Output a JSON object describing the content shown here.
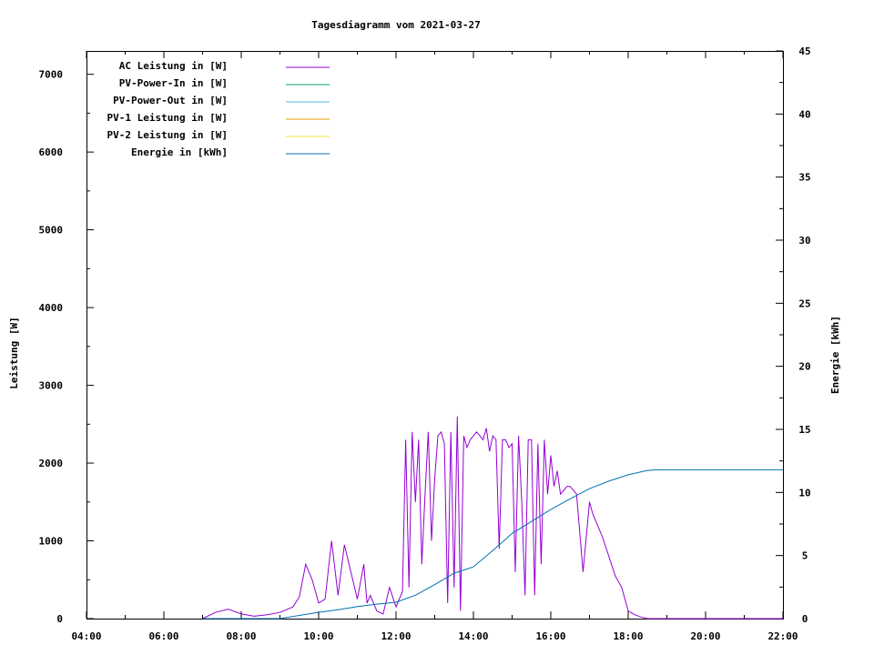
{
  "chart_data": {
    "type": "line",
    "title": "Tagesdiagramm vom 2021-03-27",
    "xlabel": "",
    "ylabel": "Leistung [W]",
    "y2label": "Energie [kWh]",
    "xlim": [
      "04:00",
      "22:00"
    ],
    "ylim": [
      0,
      7300
    ],
    "y2lim": [
      0,
      45
    ],
    "x_ticks": [
      "04:00",
      "06:00",
      "08:00",
      "10:00",
      "12:00",
      "14:00",
      "16:00",
      "18:00",
      "20:00",
      "22:00"
    ],
    "y_ticks": [
      0,
      1000,
      2000,
      3000,
      4000,
      5000,
      6000,
      7000
    ],
    "y2_ticks": [
      0,
      5,
      10,
      15,
      20,
      25,
      30,
      35,
      40,
      45
    ],
    "grid": false,
    "legend_position": "top-left",
    "series": [
      {
        "name": "AC Leistung in [W]",
        "axis": "left",
        "color": "#9400d3",
        "x": [
          "07:00",
          "07:20",
          "07:40",
          "08:00",
          "08:20",
          "08:40",
          "09:00",
          "09:20",
          "09:30",
          "09:40",
          "09:50",
          "10:00",
          "10:10",
          "10:20",
          "10:30",
          "10:40",
          "10:50",
          "11:00",
          "11:10",
          "11:15",
          "11:20",
          "11:30",
          "11:40",
          "11:50",
          "12:00",
          "12:10",
          "12:15",
          "12:20",
          "12:25",
          "12:30",
          "12:35",
          "12:40",
          "12:45",
          "12:50",
          "12:55",
          "13:00",
          "13:05",
          "13:10",
          "13:15",
          "13:20",
          "13:25",
          "13:30",
          "13:35",
          "13:40",
          "13:45",
          "13:50",
          "13:55",
          "14:00",
          "14:05",
          "14:10",
          "14:15",
          "14:20",
          "14:25",
          "14:30",
          "14:35",
          "14:40",
          "14:45",
          "14:50",
          "14:55",
          "15:00",
          "15:05",
          "15:10",
          "15:15",
          "15:20",
          "15:25",
          "15:30",
          "15:35",
          "15:40",
          "15:45",
          "15:50",
          "15:55",
          "16:00",
          "16:05",
          "16:10",
          "16:15",
          "16:20",
          "16:25",
          "16:30",
          "16:40",
          "16:50",
          "17:00",
          "17:05",
          "17:10",
          "17:20",
          "17:30",
          "17:40",
          "17:50",
          "18:00",
          "18:10",
          "18:20",
          "18:30",
          "18:35",
          "18:40",
          "18:50",
          "19:00",
          "19:10",
          "22:00"
        ],
        "y": [
          0,
          80,
          120,
          60,
          30,
          50,
          80,
          150,
          280,
          700,
          500,
          200,
          250,
          1000,
          300,
          950,
          600,
          250,
          700,
          200,
          300,
          100,
          60,
          400,
          150,
          350,
          2300,
          400,
          2400,
          1500,
          2300,
          700,
          1600,
          2400,
          1000,
          1800,
          2350,
          2400,
          2250,
          200,
          2400,
          400,
          2600,
          100,
          2350,
          2200,
          2300,
          2350,
          2400,
          2350,
          2300,
          2450,
          2150,
          2350,
          2300,
          900,
          2300,
          2300,
          2200,
          2250,
          600,
          2350,
          1500,
          300,
          2300,
          2300,
          300,
          2250,
          700,
          2300,
          1600,
          2100,
          1700,
          1900,
          1600,
          1650,
          1700,
          1700,
          1600,
          600,
          1500,
          1350,
          1250,
          1050,
          800,
          550,
          400,
          100,
          50,
          20,
          0,
          0,
          0,
          0,
          0,
          0,
          0
        ]
      },
      {
        "name": "PV-Power-In in [W]",
        "axis": "left",
        "color": "#009e73",
        "x": [],
        "y": []
      },
      {
        "name": "PV-Power-Out in [W]",
        "axis": "left",
        "color": "#56b4e9",
        "x": [],
        "y": []
      },
      {
        "name": "PV-1 Leistung in [W]",
        "axis": "left",
        "color": "#e69f00",
        "x": [],
        "y": []
      },
      {
        "name": "PV-2 Leistung in [W]",
        "axis": "left",
        "color": "#f0e442",
        "x": [],
        "y": []
      },
      {
        "name": "Energie in [kWh]",
        "axis": "right",
        "color": "#0072b2",
        "x": [
          "07:00",
          "09:00",
          "09:30",
          "10:00",
          "10:30",
          "11:00",
          "11:30",
          "12:00",
          "12:30",
          "13:00",
          "13:30",
          "14:00",
          "14:30",
          "15:00",
          "15:30",
          "16:00",
          "16:30",
          "17:00",
          "17:30",
          "18:00",
          "18:30",
          "18:45",
          "22:00"
        ],
        "y": [
          0,
          0,
          0.25,
          0.5,
          0.7,
          0.95,
          1.15,
          1.3,
          1.85,
          2.7,
          3.6,
          4.1,
          5.4,
          6.75,
          7.7,
          8.65,
          9.5,
          10.3,
          10.9,
          11.4,
          11.75,
          11.8,
          11.8
        ]
      }
    ]
  }
}
